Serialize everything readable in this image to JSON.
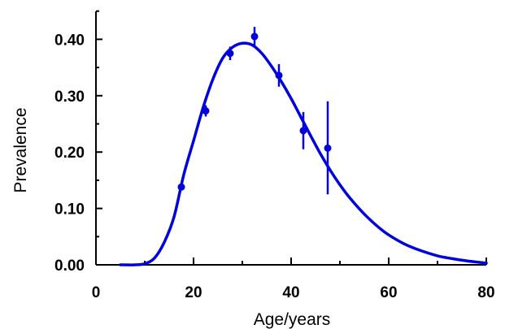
{
  "chart_data": {
    "type": "scatter",
    "title": "",
    "xlabel": "Age/years",
    "ylabel": "Prevalence",
    "xlim": [
      0,
      80
    ],
    "ylim": [
      0,
      0.45
    ],
    "grid": false,
    "x_ticks": [
      0,
      20,
      40,
      60,
      80
    ],
    "x_tick_labels": [
      "0",
      "20",
      "40",
      "60",
      "80"
    ],
    "y_ticks": [
      0,
      0.1,
      0.2,
      0.3,
      0.4
    ],
    "y_tick_labels": [
      "0.00",
      "0.10",
      "0.20",
      "0.30",
      "0.40"
    ],
    "color": "#0000dd",
    "series": [
      {
        "kind": "points-with-error-bars",
        "points": [
          {
            "x": 17.5,
            "y": 0.138,
            "low": 0.132,
            "high": 0.144
          },
          {
            "x": 22.5,
            "y": 0.273,
            "low": 0.263,
            "high": 0.283
          },
          {
            "x": 27.5,
            "y": 0.375,
            "low": 0.363,
            "high": 0.387
          },
          {
            "x": 32.5,
            "y": 0.405,
            "low": 0.388,
            "high": 0.422
          },
          {
            "x": 37.5,
            "y": 0.336,
            "low": 0.316,
            "high": 0.356
          },
          {
            "x": 42.5,
            "y": 0.238,
            "low": 0.205,
            "high": 0.271
          },
          {
            "x": 47.5,
            "y": 0.207,
            "low": 0.125,
            "high": 0.29
          }
        ]
      },
      {
        "kind": "fitted-curve",
        "x": [
          5,
          8,
          10,
          12,
          14,
          16,
          18,
          20,
          22,
          24,
          26,
          28,
          30,
          32,
          34,
          36,
          38,
          40,
          42,
          44,
          46,
          48,
          50,
          52,
          55,
          58,
          60,
          63,
          66,
          70,
          73,
          76,
          79,
          80
        ],
        "y": [
          0.0,
          0.0,
          0.002,
          0.012,
          0.04,
          0.085,
          0.16,
          0.22,
          0.28,
          0.33,
          0.367,
          0.386,
          0.393,
          0.39,
          0.375,
          0.352,
          0.325,
          0.295,
          0.262,
          0.229,
          0.197,
          0.168,
          0.142,
          0.119,
          0.09,
          0.066,
          0.053,
          0.038,
          0.027,
          0.016,
          0.011,
          0.007,
          0.004,
          0.003
        ]
      }
    ]
  }
}
